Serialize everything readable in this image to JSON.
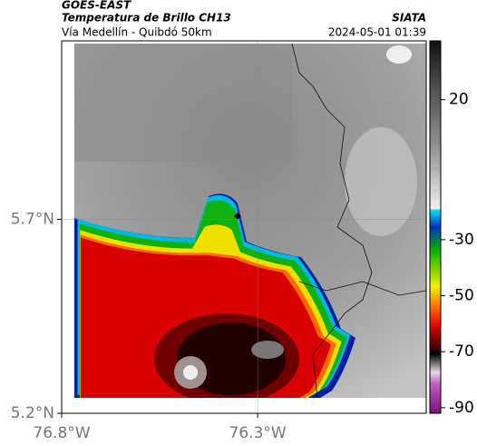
{
  "header": {
    "satellite": "GOES-EAST",
    "product": "Temperatura de Brillo CH13",
    "region": "Vía Medellín - Quibdó 50km",
    "source": "SIATA",
    "datetime": "2024-05-01 01:39"
  },
  "map": {
    "xlim": [
      -76.8,
      -75.87
    ],
    "ylim": [
      5.2,
      6.16
    ],
    "xticks": [
      {
        "value": -76.8,
        "label": "76.8°W"
      },
      {
        "value": -76.3,
        "label": "76.3°W"
      }
    ],
    "yticks": [
      {
        "value": 5.2,
        "label": "5.2°N"
      },
      {
        "value": 5.7,
        "label": "5.7°N"
      }
    ],
    "grid": true
  },
  "colorbar": {
    "clim": [
      -92,
      41
    ],
    "ticks": [
      20,
      -30,
      -50,
      -70,
      -90
    ]
  }
}
